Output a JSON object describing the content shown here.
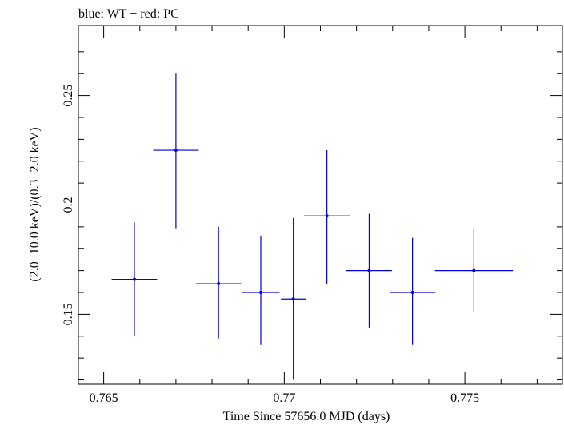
{
  "chart_data": {
    "type": "scatter",
    "title": "blue: WT − red: PC",
    "xlabel": "Time Since 57656.0 MJD (days)",
    "ylabel": "(2.0−10.0 keV)/(0.3−2.0 keV)",
    "xlim": [
      0.7643,
      0.7777
    ],
    "ylim": [
      0.118,
      0.282
    ],
    "xticks": [
      {
        "value": 0.765,
        "label": "0.765"
      },
      {
        "value": 0.77,
        "label": "0.77"
      },
      {
        "value": 0.775,
        "label": "0.775"
      }
    ],
    "yticks": [
      {
        "value": 0.15,
        "label": "0.15"
      },
      {
        "value": 0.2,
        "label": "0.2"
      },
      {
        "value": 0.25,
        "label": "0.25"
      }
    ],
    "series": [
      {
        "name": "WT",
        "color": "#0000dd",
        "points": [
          {
            "x": 0.76585,
            "xerr": 0.00063,
            "y": 0.166,
            "ylo": 0.14,
            "yhi": 0.192
          },
          {
            "x": 0.767,
            "xerr": 0.00063,
            "y": 0.225,
            "ylo": 0.189,
            "yhi": 0.26
          },
          {
            "x": 0.76818,
            "xerr": 0.00063,
            "y": 0.164,
            "ylo": 0.139,
            "yhi": 0.19
          },
          {
            "x": 0.76935,
            "xerr": 0.00052,
            "y": 0.16,
            "ylo": 0.136,
            "yhi": 0.186
          },
          {
            "x": 0.77025,
            "xerr": 0.00034,
            "y": 0.157,
            "ylo": 0.12,
            "yhi": 0.194
          },
          {
            "x": 0.77118,
            "xerr": 0.00063,
            "y": 0.195,
            "ylo": 0.164,
            "yhi": 0.225
          },
          {
            "x": 0.77235,
            "xerr": 0.00063,
            "y": 0.17,
            "ylo": 0.144,
            "yhi": 0.196
          },
          {
            "x": 0.77355,
            "xerr": 0.00063,
            "y": 0.16,
            "ylo": 0.136,
            "yhi": 0.185
          },
          {
            "x": 0.77525,
            "xerr": 0.00108,
            "y": 0.17,
            "ylo": 0.151,
            "yhi": 0.189
          }
        ]
      }
    ]
  }
}
